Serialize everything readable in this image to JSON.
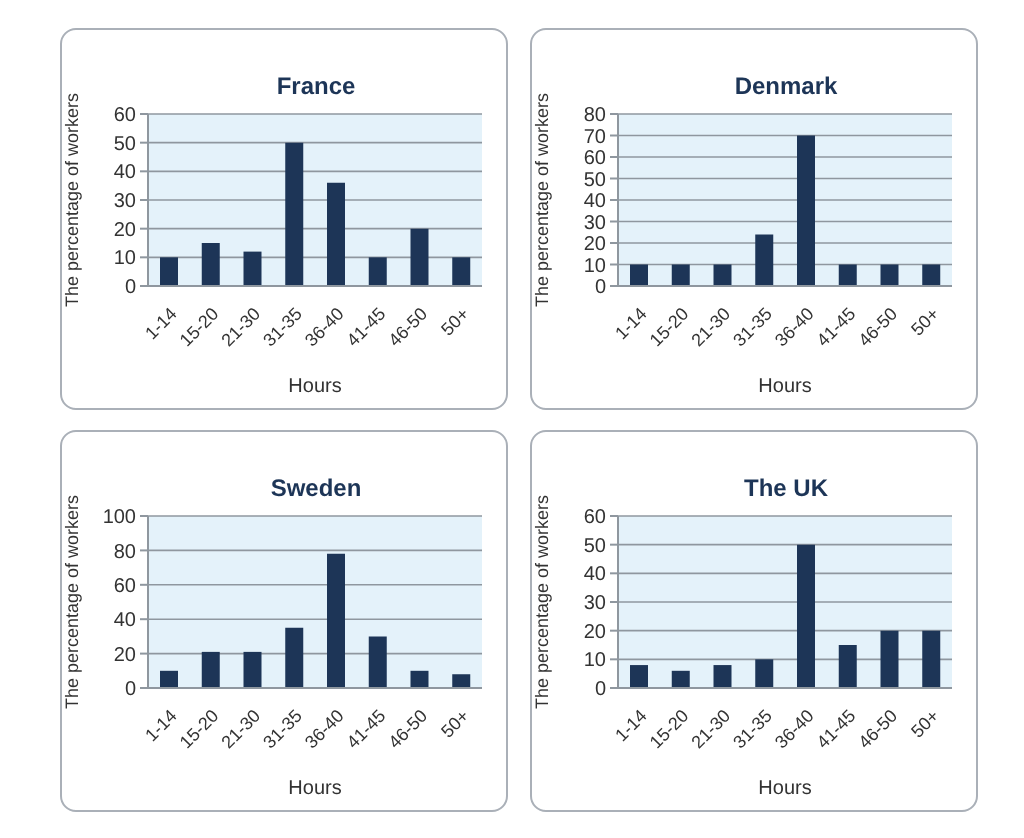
{
  "chart_data": [
    {
      "type": "bar",
      "title": "France",
      "xlabel": "Hours",
      "ylabel": "The percentage of workers",
      "categories": [
        "1-14",
        "15-20",
        "21-30",
        "31-35",
        "36-40",
        "41-45",
        "46-50",
        "50+"
      ],
      "values": [
        10,
        15,
        12,
        50,
        36,
        10,
        20,
        10
      ],
      "color": "#1d3557",
      "ylim": [
        0,
        60
      ],
      "yticks": [
        0,
        10,
        20,
        30,
        40,
        50,
        60
      ],
      "grid": "y"
    },
    {
      "type": "bar",
      "title": "Denmark",
      "xlabel": "Hours",
      "ylabel": "The percentage of workers",
      "categories": [
        "1-14",
        "15-20",
        "21-30",
        "31-35",
        "36-40",
        "41-45",
        "46-50",
        "50+"
      ],
      "values": [
        10,
        10,
        10,
        24,
        70,
        10,
        10,
        10
      ],
      "color": "#1d3557",
      "ylim": [
        0,
        80
      ],
      "yticks": [
        0,
        10,
        20,
        30,
        40,
        50,
        60,
        70,
        80
      ],
      "grid": "y"
    },
    {
      "type": "bar",
      "title": "Sweden",
      "xlabel": "Hours",
      "ylabel": "The percentage of workers",
      "categories": [
        "1-14",
        "15-20",
        "21-30",
        "31-35",
        "36-40",
        "41-45",
        "46-50",
        "50+"
      ],
      "values": [
        10,
        21,
        21,
        35,
        78,
        30,
        10,
        8
      ],
      "color": "#1d3557",
      "ylim": [
        0,
        100
      ],
      "yticks": [
        0,
        20,
        40,
        60,
        80,
        100
      ],
      "grid": "y"
    },
    {
      "type": "bar",
      "title": "The UK",
      "xlabel": "Hours",
      "ylabel": "The percentage of workers",
      "categories": [
        "1-14",
        "15-20",
        "21-30",
        "31-35",
        "36-40",
        "41-45",
        "46-50",
        "50+"
      ],
      "values": [
        8,
        6,
        8,
        10,
        50,
        15,
        20,
        20
      ],
      "color": "#1d3557",
      "ylim": [
        0,
        60
      ],
      "yticks": [
        0,
        10,
        20,
        30,
        40,
        50,
        60
      ],
      "grid": "y"
    }
  ]
}
